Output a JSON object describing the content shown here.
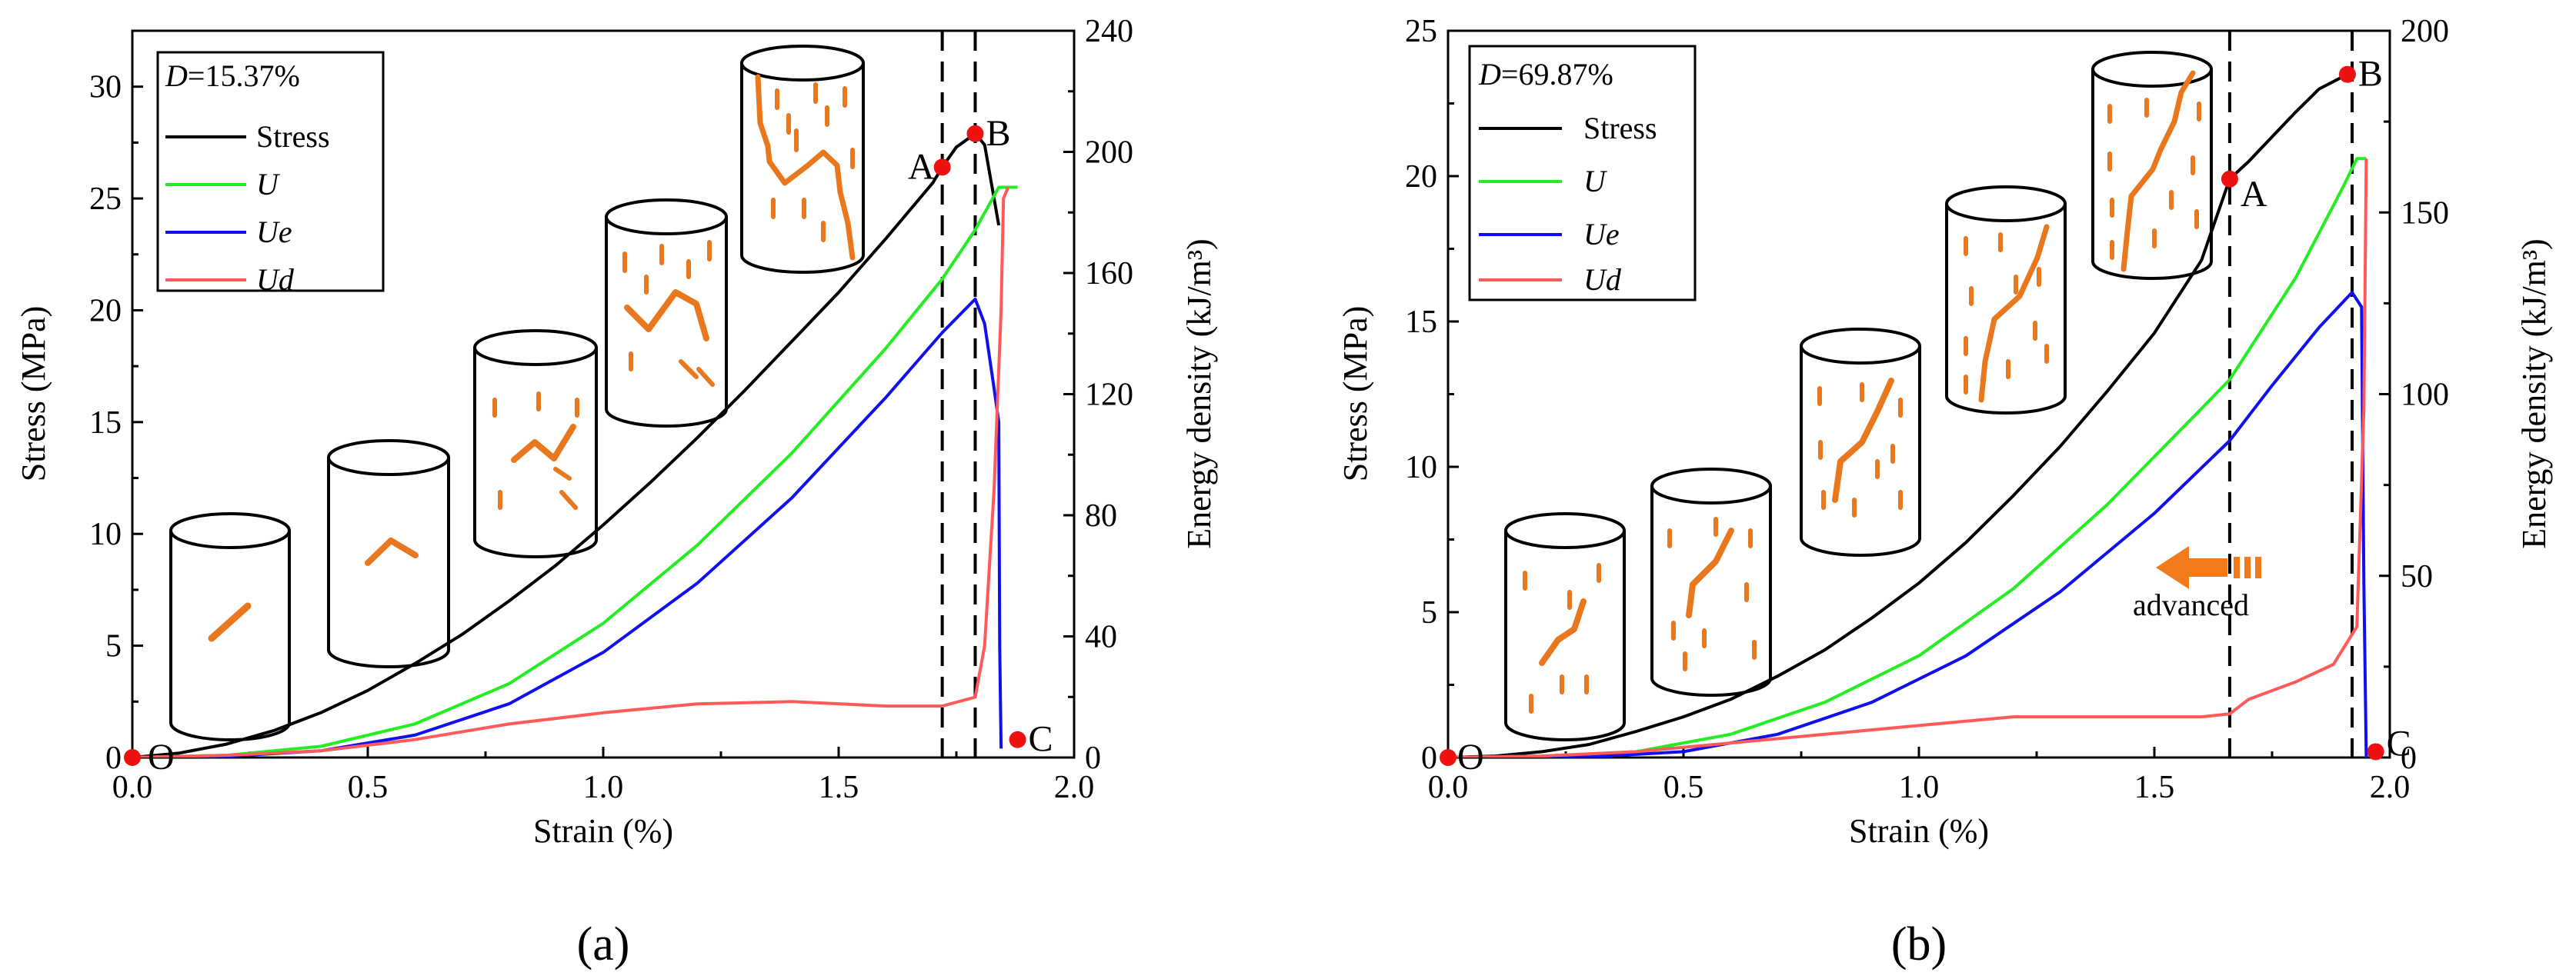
{
  "colors": {
    "stress": "#000000",
    "U": "#22ee22",
    "Ue": "#1010ee",
    "Ud": "#ff5a5a",
    "marker": "#ee1111",
    "crack": "#e8771e",
    "arrow": "#f07a1c"
  },
  "chart_data": [
    {
      "type": "line",
      "panel_label": "(a)",
      "D_label": "D",
      "D_value": "=15.37%",
      "xlabel": "Strain (%)",
      "ylabel_left": "Stress (MPa)",
      "ylabel_right": "Energy density (kJ/m³)",
      "xlim": [
        0,
        2.0
      ],
      "ylim_left": [
        0,
        32.5
      ],
      "ylim_right": [
        0,
        240
      ],
      "x_ticks": [
        "0.0",
        "0.5",
        "1.0",
        "1.5",
        "2.0"
      ],
      "y_left_ticks": [
        "0",
        "5",
        "10",
        "15",
        "20",
        "25",
        "30"
      ],
      "y_right_ticks": [
        "0",
        "40",
        "80",
        "120",
        "160",
        "200",
        "240"
      ],
      "legend": [
        "Stress",
        "U",
        "Ue",
        "Ud"
      ],
      "vlines": [
        1.72,
        1.79
      ],
      "points": [
        {
          "label": "O",
          "x": 0.0,
          "y": 0.0
        },
        {
          "label": "A",
          "x": 1.72,
          "y": 26.4
        },
        {
          "label": "B",
          "x": 1.79,
          "y": 27.9
        },
        {
          "label": "C",
          "x": 1.88,
          "y": 0.8
        }
      ],
      "series": [
        {
          "name": "Stress",
          "axis": "left",
          "x": [
            0,
            0.1,
            0.2,
            0.3,
            0.4,
            0.5,
            0.6,
            0.7,
            0.8,
            0.9,
            1.0,
            1.1,
            1.2,
            1.3,
            1.4,
            1.5,
            1.6,
            1.7,
            1.72,
            1.75,
            1.79,
            1.81,
            1.83,
            1.84
          ],
          "y": [
            0,
            0.2,
            0.6,
            1.2,
            2.0,
            3.0,
            4.2,
            5.5,
            7.0,
            8.6,
            10.4,
            12.3,
            14.3,
            16.4,
            18.6,
            20.8,
            23.2,
            25.7,
            26.4,
            27.3,
            27.9,
            27.4,
            25.0,
            23.8
          ]
        },
        {
          "name": "U",
          "axis": "left",
          "x": [
            0,
            0.2,
            0.4,
            0.6,
            0.8,
            1.0,
            1.2,
            1.4,
            1.6,
            1.72,
            1.79,
            1.84,
            1.88
          ],
          "y": [
            0,
            0.1,
            0.5,
            1.5,
            3.3,
            6.0,
            9.5,
            13.6,
            18.3,
            21.4,
            23.6,
            25.5,
            25.5
          ]
        },
        {
          "name": "Ue",
          "axis": "left",
          "x": [
            0,
            0.2,
            0.4,
            0.6,
            0.8,
            1.0,
            1.2,
            1.4,
            1.6,
            1.72,
            1.79,
            1.81,
            1.83,
            1.84,
            1.842,
            1.845
          ],
          "y": [
            0,
            0.05,
            0.3,
            1.0,
            2.4,
            4.7,
            7.8,
            11.6,
            16.1,
            19.0,
            20.5,
            19.4,
            16.5,
            15.0,
            5.0,
            0.4
          ]
        },
        {
          "name": "Ud",
          "axis": "left",
          "x": [
            0,
            0.2,
            0.4,
            0.6,
            0.8,
            1.0,
            1.2,
            1.4,
            1.6,
            1.72,
            1.79,
            1.81,
            1.83,
            1.845,
            1.85,
            1.86
          ],
          "y": [
            0,
            0.1,
            0.3,
            0.8,
            1.5,
            2.0,
            2.4,
            2.5,
            2.3,
            2.3,
            2.7,
            5.0,
            12.0,
            20.0,
            25.0,
            25.5
          ]
        }
      ]
    },
    {
      "type": "line",
      "panel_label": "(b)",
      "D_label": "D",
      "D_value": "=69.87%",
      "xlabel": "Strain (%)",
      "ylabel_left": "Stress (MPa)",
      "ylabel_right": "Energy density (kJ/m³)",
      "xlim": [
        0,
        2.0
      ],
      "ylim_left": [
        0,
        25
      ],
      "ylim_right": [
        0,
        200
      ],
      "x_ticks": [
        "0.0",
        "0.5",
        "1.0",
        "1.5",
        "2.0"
      ],
      "y_left_ticks": [
        "0",
        "5",
        "10",
        "15",
        "20",
        "25"
      ],
      "y_right_ticks": [
        "0",
        "50",
        "100",
        "150",
        "200"
      ],
      "legend": [
        "Stress",
        "U",
        "Ue",
        "Ud"
      ],
      "annotation": "advanced",
      "vlines": [
        1.66,
        1.92
      ],
      "points": [
        {
          "label": "O",
          "x": 0.0,
          "y": 0.0
        },
        {
          "label": "A",
          "x": 1.66,
          "y": 19.9
        },
        {
          "label": "B",
          "x": 1.91,
          "y": 23.5
        },
        {
          "label": "C",
          "x": 1.97,
          "y": 0.2
        }
      ],
      "series": [
        {
          "name": "Stress",
          "axis": "left",
          "x": [
            0,
            0.1,
            0.2,
            0.3,
            0.4,
            0.5,
            0.6,
            0.7,
            0.8,
            0.9,
            1.0,
            1.1,
            1.2,
            1.3,
            1.4,
            1.5,
            1.6,
            1.66,
            1.7,
            1.8,
            1.85,
            1.91
          ],
          "y": [
            0,
            0.05,
            0.2,
            0.45,
            0.9,
            1.4,
            2.0,
            2.8,
            3.7,
            4.8,
            6.0,
            7.4,
            9.0,
            10.7,
            12.6,
            14.6,
            17.1,
            19.9,
            20.5,
            22.2,
            23.0,
            23.5
          ]
        },
        {
          "name": "U",
          "axis": "left",
          "x": [
            0,
            0.2,
            0.4,
            0.6,
            0.8,
            1.0,
            1.2,
            1.4,
            1.6,
            1.66,
            1.8,
            1.9,
            1.93,
            1.95
          ],
          "y": [
            0,
            0.05,
            0.2,
            0.8,
            1.9,
            3.5,
            5.8,
            8.7,
            12.0,
            13.0,
            16.5,
            19.6,
            20.6,
            20.6
          ]
        },
        {
          "name": "Ue",
          "axis": "left",
          "x": [
            0,
            0.3,
            0.5,
            0.7,
            0.9,
            1.1,
            1.3,
            1.5,
            1.66,
            1.75,
            1.85,
            1.92,
            1.94,
            1.945,
            1.95
          ],
          "y": [
            0,
            0.02,
            0.2,
            0.8,
            1.9,
            3.5,
            5.7,
            8.4,
            10.9,
            12.8,
            14.8,
            16.0,
            15.5,
            6.0,
            0
          ]
        },
        {
          "name": "Ud",
          "axis": "left",
          "x": [
            0,
            0.2,
            0.4,
            0.6,
            0.8,
            1.0,
            1.2,
            1.4,
            1.6,
            1.66,
            1.7,
            1.8,
            1.88,
            1.93,
            1.945,
            1.95
          ],
          "y": [
            0,
            0.05,
            0.2,
            0.5,
            0.8,
            1.1,
            1.4,
            1.4,
            1.4,
            1.5,
            2.0,
            2.6,
            3.2,
            4.5,
            12.0,
            20.6
          ]
        }
      ]
    }
  ]
}
